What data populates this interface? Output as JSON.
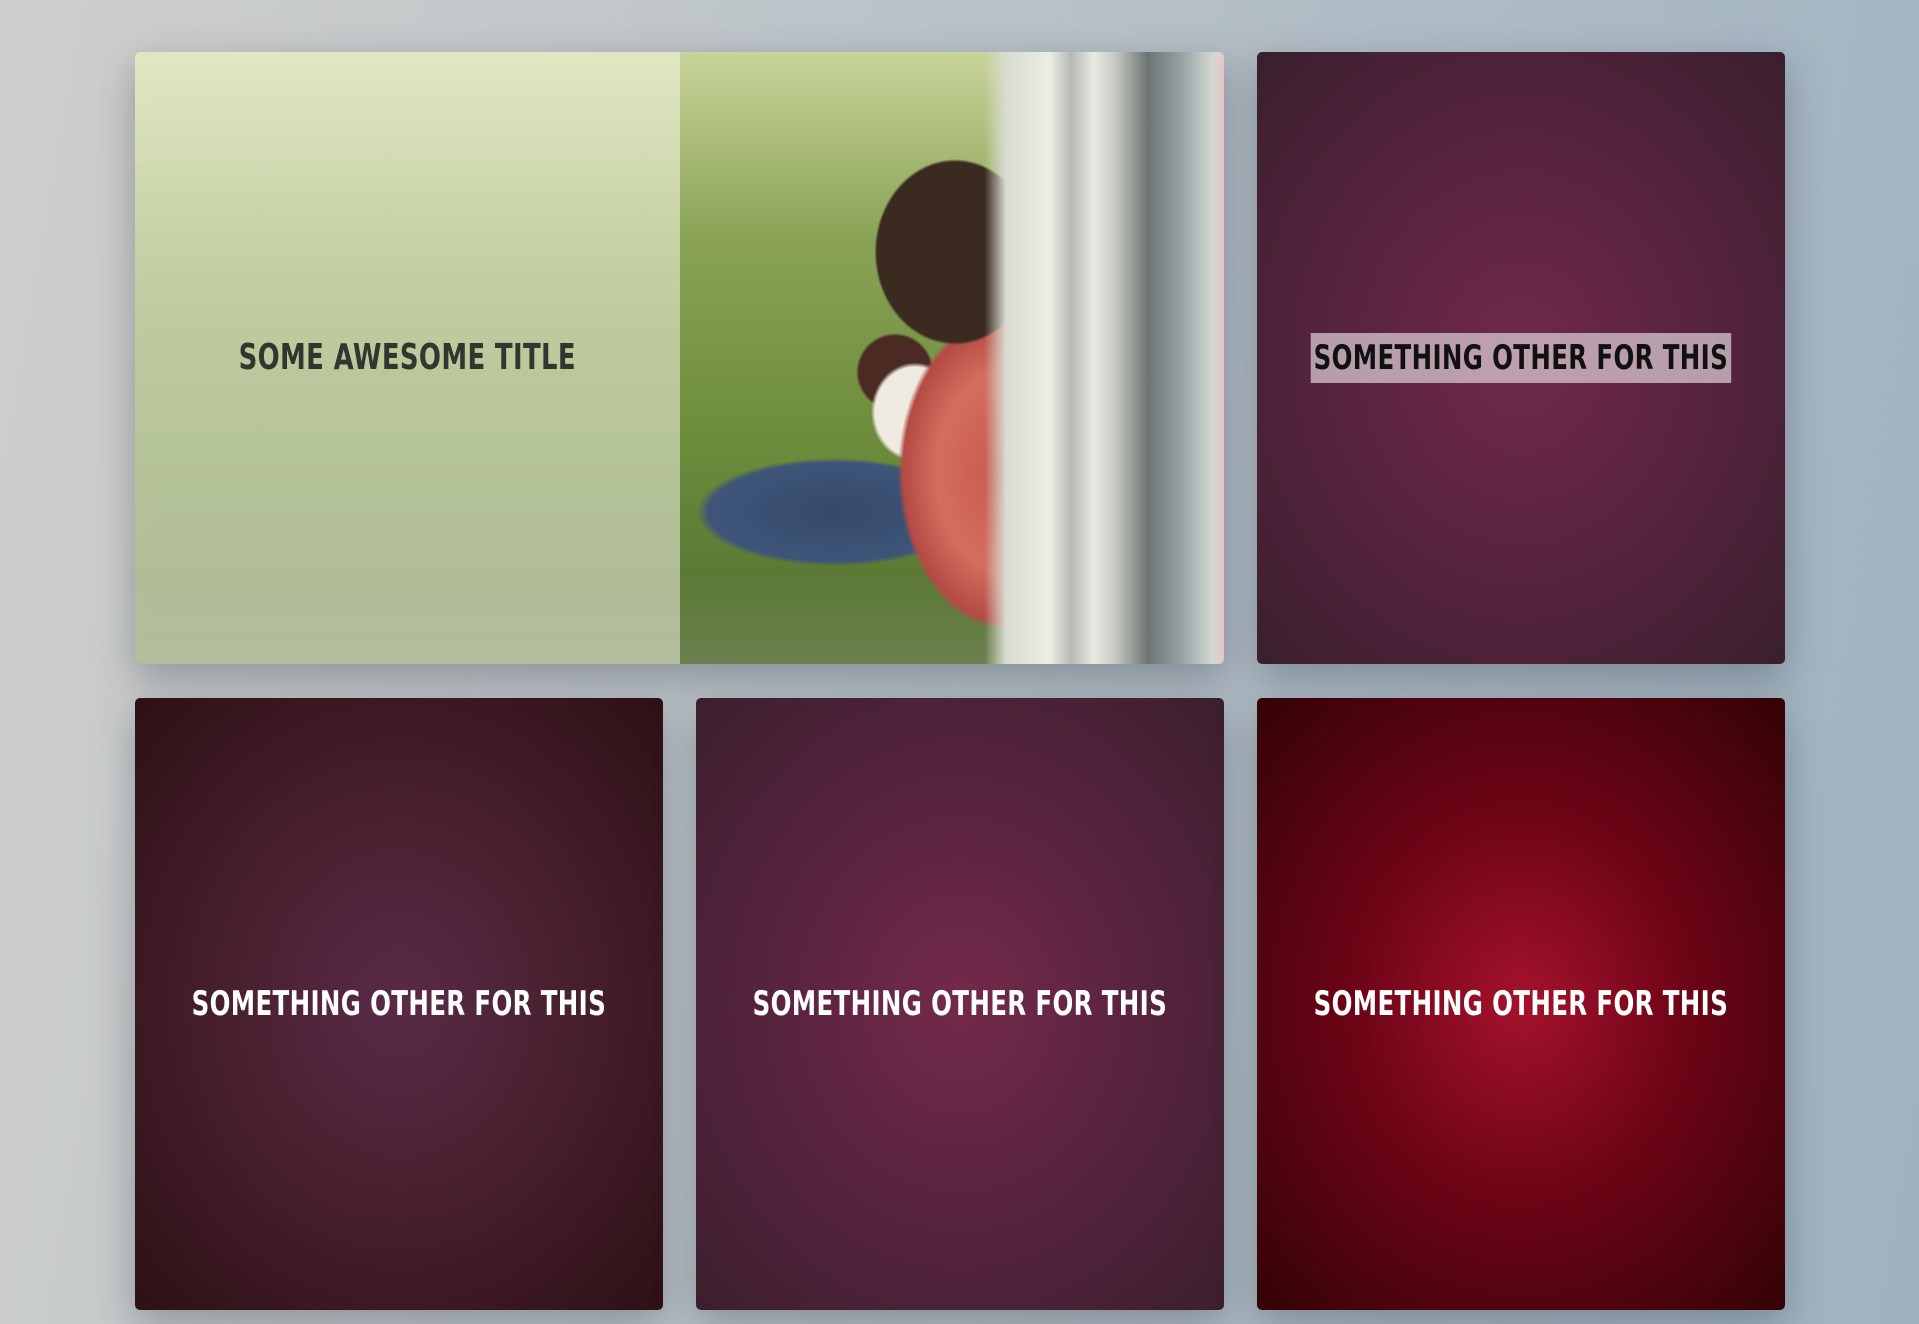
{
  "cards": [
    {
      "title": "SOME AWESOME TITLE",
      "style": "photo"
    },
    {
      "title": "SOMETHING OTHER FOR THIS",
      "style": "gradient",
      "accent": "#70294a",
      "selected": true
    },
    {
      "title": "SOMETHING OTHER FOR THIS",
      "style": "gradient",
      "accent": "#5a2a48"
    },
    {
      "title": "SOMETHING OTHER FOR THIS",
      "style": "gradient",
      "accent": "#74294a"
    },
    {
      "title": "SOMETHING OTHER FOR THIS",
      "style": "gradient",
      "accent": "#a4122d"
    }
  ]
}
